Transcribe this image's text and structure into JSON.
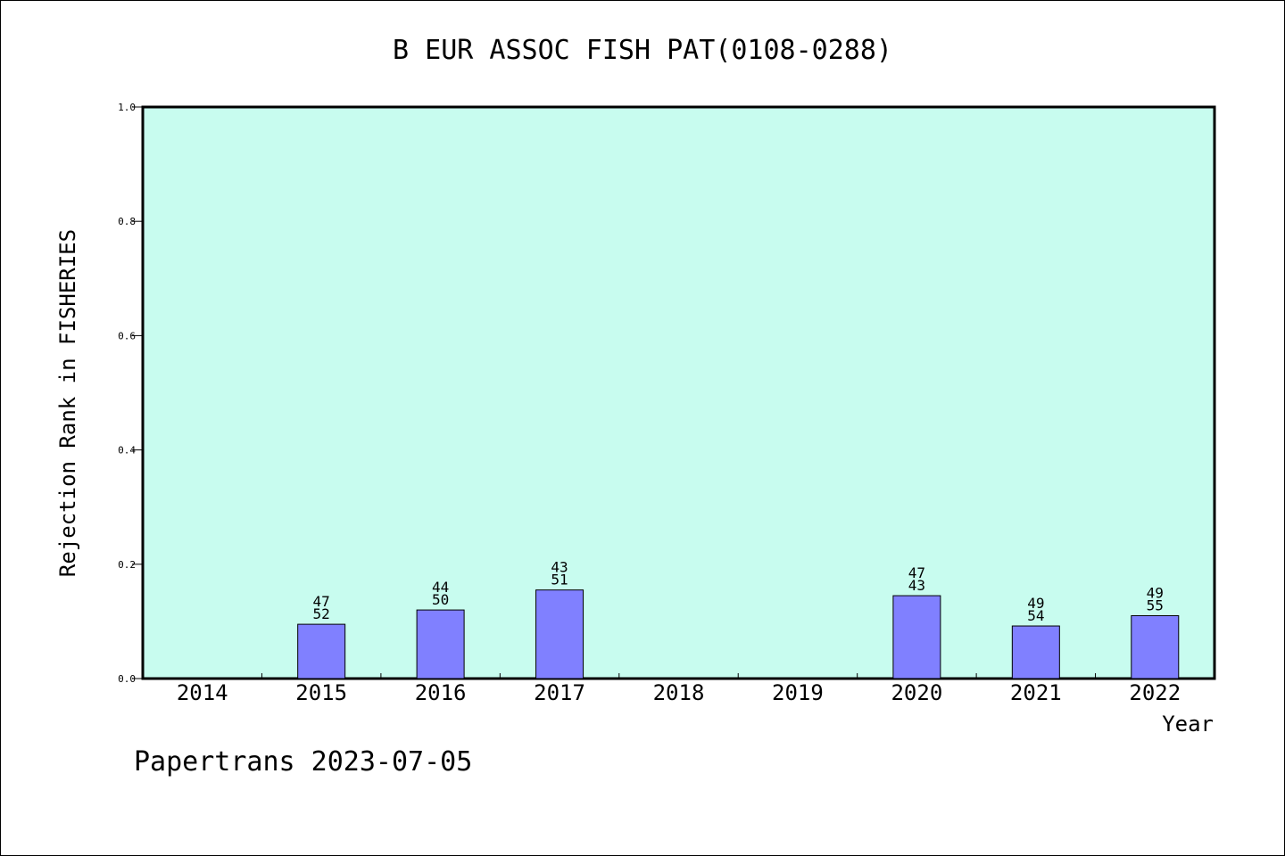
{
  "chart_data": {
    "type": "bar",
    "title": "B EUR ASSOC FISH PAT(0108-0288)",
    "xlabel": "Year",
    "ylabel": "Rejection Rank in FISHERIES",
    "ylim": [
      0.0,
      1.0
    ],
    "yticks": [
      "0.0",
      "0.2",
      "0.4",
      "0.6",
      "0.8",
      "1.0"
    ],
    "categories": [
      "2014",
      "2015",
      "2016",
      "2017",
      "2018",
      "2019",
      "2020",
      "2021",
      "2022"
    ],
    "values": [
      null,
      0.095,
      0.12,
      0.155,
      null,
      null,
      0.145,
      0.092,
      0.11
    ],
    "labels_top": [
      "",
      "47",
      "44",
      "43",
      "",
      "",
      "47",
      "49",
      "49"
    ],
    "labels_bottom": [
      "",
      "52",
      "50",
      "51",
      "",
      "",
      "43",
      "54",
      "55"
    ],
    "grid": false,
    "colors": {
      "plot_bg": "#c8fcef",
      "bar": "#8080ff",
      "bar_edge": "#000000"
    }
  },
  "footer": {
    "text": "Papertrans 2023-07-05"
  }
}
